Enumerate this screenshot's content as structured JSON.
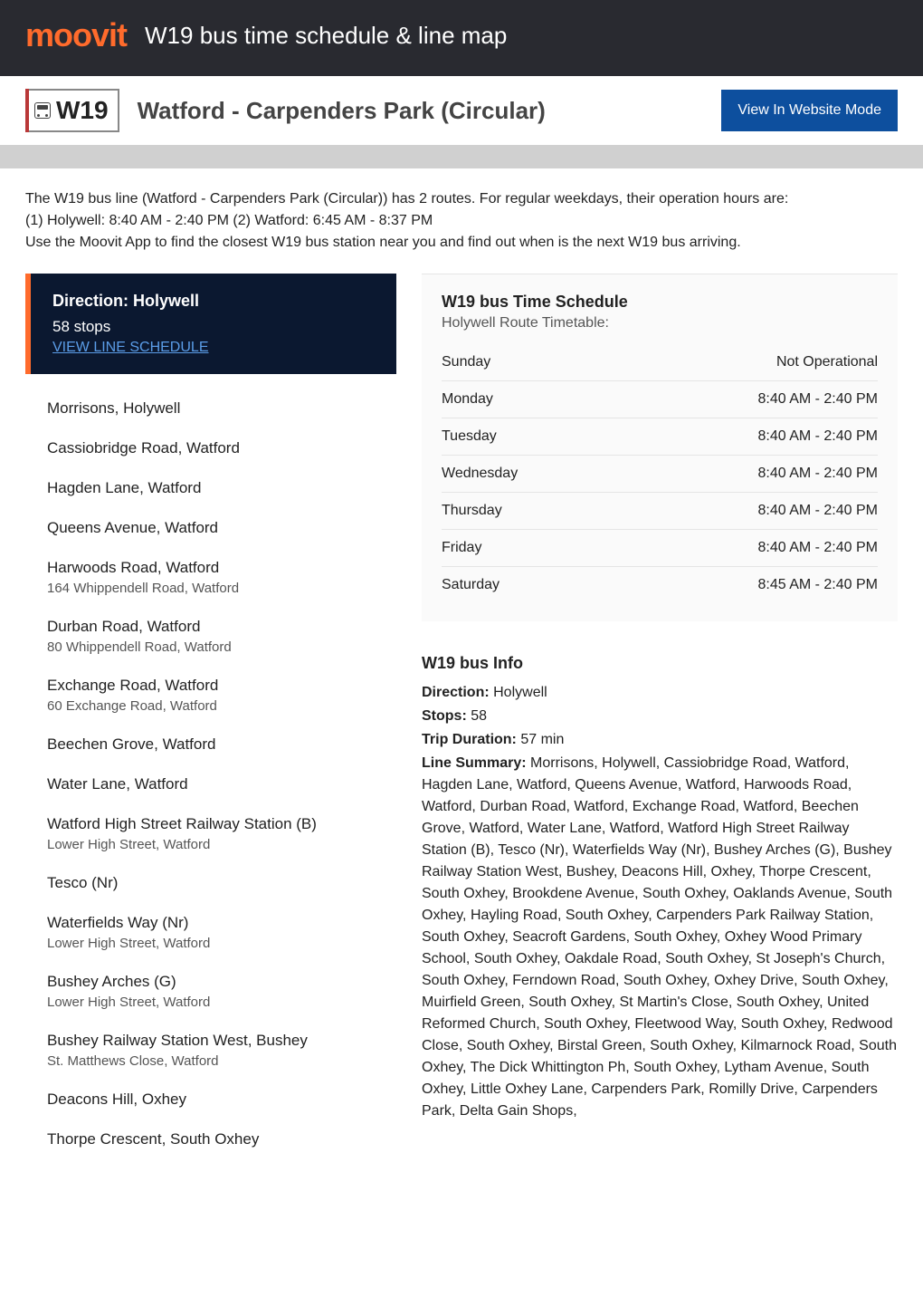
{
  "header": {
    "logo_text": "moovit",
    "page_title": "W19 bus time schedule & line map"
  },
  "route": {
    "badge": "W19",
    "name": "Watford - Carpenders Park (Circular)",
    "view_mode_label": "View In Website Mode"
  },
  "intro_text": "The W19 bus line (Watford - Carpenders Park (Circular)) has 2 routes. For regular weekdays, their operation hours are:\n(1) Holywell: 8:40 AM - 2:40 PM (2) Watford: 6:45 AM - 8:37 PM\nUse the Moovit App to find the closest W19 bus station near you and find out when is the next W19 bus arriving.",
  "direction": {
    "label": "Direction: Holywell",
    "stops_count": "58 stops",
    "view_schedule": "VIEW LINE SCHEDULE"
  },
  "stops": [
    {
      "name": "Morrisons, Holywell",
      "sub": ""
    },
    {
      "name": "Cassiobridge Road, Watford",
      "sub": ""
    },
    {
      "name": "Hagden Lane, Watford",
      "sub": ""
    },
    {
      "name": "Queens Avenue, Watford",
      "sub": ""
    },
    {
      "name": "Harwoods Road, Watford",
      "sub": "164 Whippendell Road, Watford"
    },
    {
      "name": "Durban Road, Watford",
      "sub": "80 Whippendell Road, Watford"
    },
    {
      "name": "Exchange Road, Watford",
      "sub": "60 Exchange Road, Watford"
    },
    {
      "name": "Beechen Grove, Watford",
      "sub": ""
    },
    {
      "name": "Water Lane, Watford",
      "sub": ""
    },
    {
      "name": "Watford High Street Railway Station (B)",
      "sub": "Lower High Street, Watford"
    },
    {
      "name": "Tesco (Nr)",
      "sub": ""
    },
    {
      "name": "Waterfields Way (Nr)",
      "sub": "Lower High Street, Watford"
    },
    {
      "name": "Bushey Arches (G)",
      "sub": "Lower High Street, Watford"
    },
    {
      "name": "Bushey Railway Station West, Bushey",
      "sub": "St. Matthews Close, Watford"
    },
    {
      "name": "Deacons Hill, Oxhey",
      "sub": ""
    },
    {
      "name": "Thorpe Crescent, South Oxhey",
      "sub": ""
    }
  ],
  "schedule": {
    "title": "W19 bus Time Schedule",
    "subtitle": "Holywell Route Timetable:",
    "rows": [
      {
        "day": "Sunday",
        "hours": "Not Operational"
      },
      {
        "day": "Monday",
        "hours": "8:40 AM - 2:40 PM"
      },
      {
        "day": "Tuesday",
        "hours": "8:40 AM - 2:40 PM"
      },
      {
        "day": "Wednesday",
        "hours": "8:40 AM - 2:40 PM"
      },
      {
        "day": "Thursday",
        "hours": "8:40 AM - 2:40 PM"
      },
      {
        "day": "Friday",
        "hours": "8:40 AM - 2:40 PM"
      },
      {
        "day": "Saturday",
        "hours": "8:45 AM - 2:40 PM"
      }
    ]
  },
  "info": {
    "title": "W19 bus Info",
    "direction_label": "Direction:",
    "direction_value": "Holywell",
    "stops_label": "Stops:",
    "stops_value": "58",
    "duration_label": "Trip Duration:",
    "duration_value": "57 min",
    "summary_label": "Line Summary:",
    "summary_value": "Morrisons, Holywell, Cassiobridge Road, Watford, Hagden Lane, Watford, Queens Avenue, Watford, Harwoods Road, Watford, Durban Road, Watford, Exchange Road, Watford, Beechen Grove, Watford, Water Lane, Watford, Watford High Street Railway Station (B), Tesco (Nr), Waterfields Way (Nr), Bushey Arches (G), Bushey Railway Station West, Bushey, Deacons Hill, Oxhey, Thorpe Crescent, South Oxhey, Brookdene Avenue, South Oxhey, Oaklands Avenue, South Oxhey, Hayling Road, South Oxhey, Carpenders Park Railway Station, South Oxhey, Seacroft Gardens, South Oxhey, Oxhey Wood Primary School, South Oxhey, Oakdale Road, South Oxhey, St Joseph's Church, South Oxhey, Ferndown Road, South Oxhey, Oxhey Drive, South Oxhey, Muirfield Green, South Oxhey, St Martin's Close, South Oxhey, United Reformed Church, South Oxhey, Fleetwood Way, South Oxhey, Redwood Close, South Oxhey, Birstal Green, South Oxhey, Kilmarnock Road, South Oxhey, The Dick Whittington Ph, South Oxhey, Lytham Avenue, South Oxhey, Little Oxhey Lane, Carpenders Park, Romilly Drive, Carpenders Park, Delta Gain Shops,"
  },
  "colors": {
    "brand_orange": "#ff6b2c",
    "header_bg": "#292a30",
    "button_blue": "#0d4f9e",
    "direction_bg": "#0b1830",
    "link_blue": "#5b9de8",
    "badge_accent": "#b93838"
  }
}
